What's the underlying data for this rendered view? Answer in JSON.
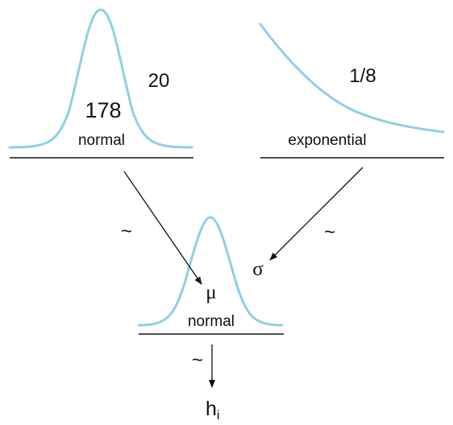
{
  "colors": {
    "curve": "#8ecfe6",
    "line": "#111111",
    "background": "#ffffff"
  },
  "prior_mu": {
    "distribution": "normal",
    "mean_label": "178",
    "sd_label": "20"
  },
  "prior_sigma": {
    "distribution": "exponential",
    "rate_label": "1/8"
  },
  "likelihood": {
    "distribution": "normal",
    "mu_symbol": "μ",
    "sigma_symbol": "σ"
  },
  "tilde": "~",
  "observed": {
    "base": "h",
    "subscript": "i"
  }
}
